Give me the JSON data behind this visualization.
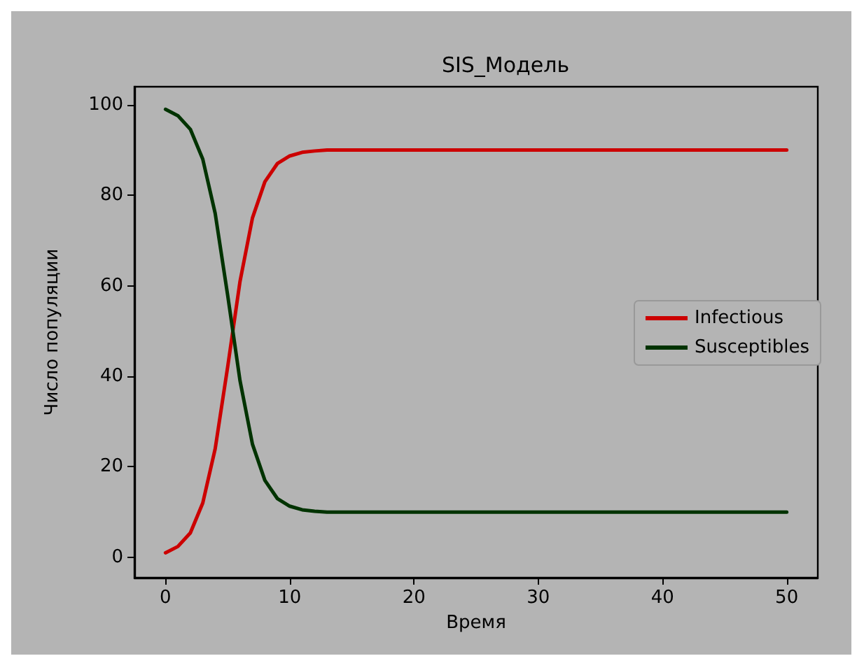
{
  "chart_data": {
    "type": "line",
    "title": "SIS_Модель",
    "xlabel": "Время",
    "ylabel": "Число популяции",
    "x": [
      0,
      1,
      2,
      3,
      4,
      5,
      6,
      7,
      8,
      9,
      10,
      11,
      12,
      13,
      14,
      15,
      20,
      30,
      40,
      50
    ],
    "series": [
      {
        "name": "Infectious",
        "color": "#cc0000",
        "values": [
          1,
          2.4,
          5.4,
          12,
          24,
          42,
          61,
          75,
          83,
          87,
          88.7,
          89.5,
          89.8,
          90,
          90,
          90,
          90,
          90,
          90,
          90
        ]
      },
      {
        "name": "Susceptibles",
        "color": "#003300",
        "values": [
          99,
          97.6,
          94.6,
          88,
          76,
          58,
          39,
          25,
          17,
          13,
          11.3,
          10.5,
          10.2,
          10,
          10,
          10,
          10,
          10,
          10,
          10
        ]
      }
    ],
    "xlim": [
      -2.5,
      52.5
    ],
    "xticks": [
      0,
      10,
      20,
      30,
      40,
      50
    ],
    "ylim": [
      -4.5,
      104
    ],
    "yticks": [
      0,
      20,
      40,
      60,
      80,
      100
    ],
    "grid": false,
    "legend": "right",
    "marker": "none",
    "line_style": "solid"
  }
}
